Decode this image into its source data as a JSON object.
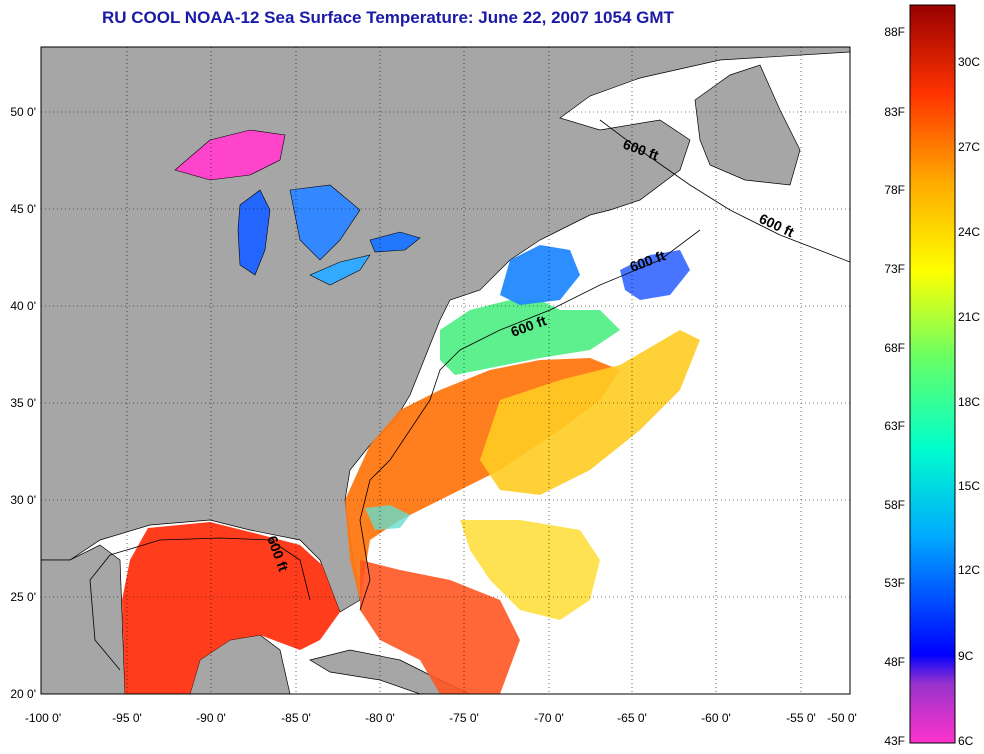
{
  "title": "RU COOL  NOAA-12  Sea Surface Temperature:  June 22, 2007 1054 GMT",
  "map": {
    "lon_range": [
      -100,
      -50
    ],
    "lat_range": [
      20,
      52.5
    ],
    "lon_ticks": [
      "-100 0'",
      "-95 0'",
      "-90 0'",
      "-85 0'",
      "-80 0'",
      "-75 0'",
      "-70 0'",
      "-65 0'",
      "-60 0'",
      "-55 0'",
      "-50 0'"
    ],
    "lat_ticks": [
      "50 0'",
      "45 0'",
      "40 0'",
      "35 0'",
      "30 0'",
      "25 0'",
      "20 0'"
    ],
    "land_color": "#a6a6a6",
    "grid": "dotted",
    "isobath_labels": [
      "600 ft",
      "600 ft",
      "600 ft",
      "600 ft",
      "600 ft"
    ]
  },
  "colorbar": {
    "fahrenheit_ticks": [
      "88F",
      "83F",
      "78F",
      "73F",
      "68F",
      "63F",
      "58F",
      "53F",
      "48F",
      "43F"
    ],
    "celsius_ticks": [
      "30C",
      "27C",
      "24C",
      "21C",
      "18C",
      "15C",
      "12C",
      "9C",
      "6C"
    ],
    "range_c": [
      6,
      32
    ]
  }
}
